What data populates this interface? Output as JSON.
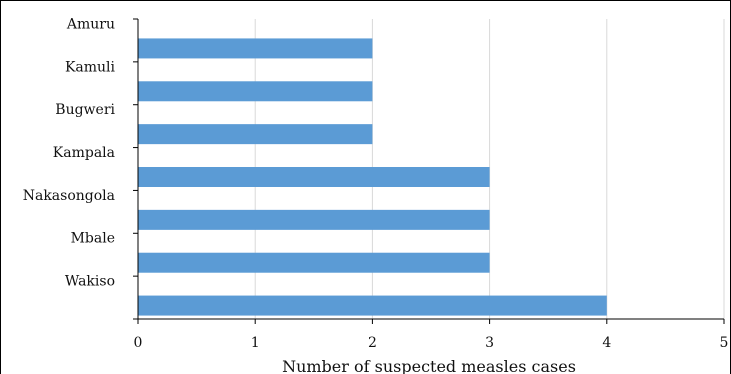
{
  "chart_data": {
    "type": "bar",
    "orientation": "horizontal",
    "categories": [
      "Amuru",
      "Kamuli",
      "Bugweri",
      "Kampala",
      "Nakasongola",
      "Mbale",
      "Wakiso"
    ],
    "values": [
      2,
      2,
      2,
      3,
      3,
      3,
      4
    ],
    "xlabel": "Number of suspected measles cases",
    "ylabel": "",
    "xlim": [
      0,
      5
    ],
    "xticks": [
      "0",
      "1",
      "2",
      "3",
      "4",
      "5"
    ],
    "grid": "vertical",
    "bar_color": "#5b9bd5",
    "grid_color": "#d9d9d9"
  }
}
